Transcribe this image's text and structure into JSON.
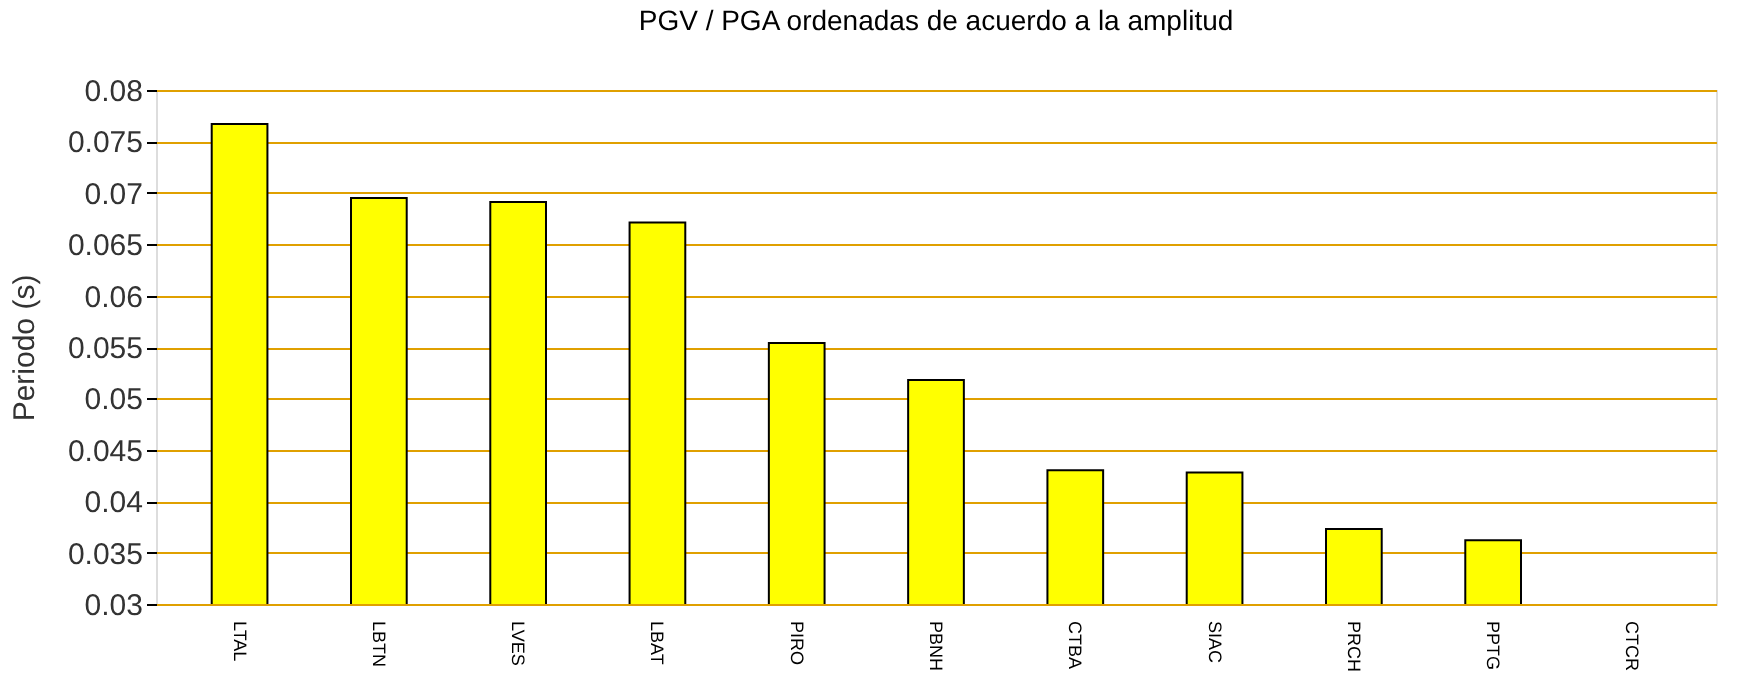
{
  "chart_data": {
    "type": "bar",
    "title": "PGV / PGA ordenadas de acuerdo a la amplitud",
    "ylabel": "Periodo (s)",
    "categories": [
      "LTAL",
      "LBTN",
      "LVES",
      "LBAT",
      "PIRO",
      "PBNH",
      "CTBA",
      "SIAC",
      "PRCH",
      "PPTG",
      "CTCR"
    ],
    "values": [
      0.0767,
      0.0695,
      0.0691,
      0.0671,
      0.0554,
      0.0518,
      0.043,
      0.0428,
      0.0373,
      0.0362,
      null
    ],
    "color": "#ffff00",
    "ylim": [
      0.03,
      0.08
    ],
    "yticks": [
      0.03,
      0.035,
      0.04,
      0.045,
      0.05,
      0.055,
      0.06,
      0.065,
      0.07,
      0.075,
      0.08
    ],
    "grid": "y"
  }
}
